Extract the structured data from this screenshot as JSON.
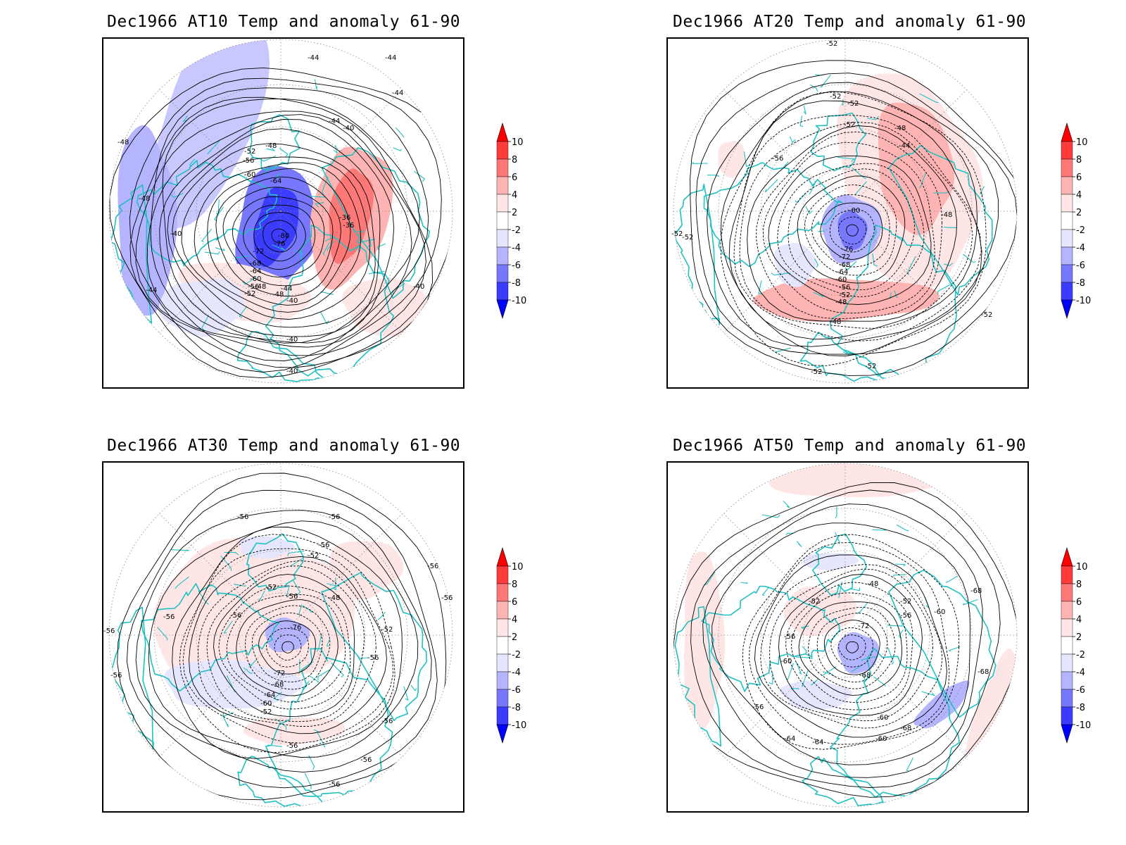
{
  "colorbar": {
    "ticks": [
      "10",
      "8",
      "6",
      "4",
      "2",
      "-2",
      "-4",
      "-6",
      "-8",
      "-10"
    ],
    "colors": [
      "#ff0000",
      "#ff3c3c",
      "#ff7878",
      "#ffb4b4",
      "#ffe6e6",
      "#ffffff",
      "#e6e6ff",
      "#b4b4ff",
      "#7878ff",
      "#3c3cff",
      "#0000ff"
    ]
  },
  "coastline_color": "#20c0c0",
  "panels": [
    {
      "title": "Dec1966 AT10 Temp and anomaly 61-90",
      "contour_labels": [
        "-44",
        "-44",
        "-44",
        "-44",
        "-44",
        "-48",
        "-48",
        "-48",
        "-48",
        "-52",
        "-56",
        "-60",
        "-64",
        "-40",
        "-40",
        "-40",
        "-40",
        "-40",
        "-36",
        "-36",
        "-80",
        "-76",
        "-72",
        "-68",
        "-64",
        "-60",
        "-56",
        "-52",
        "-48",
        "-44",
        "-40"
      ]
    },
    {
      "title": "Dec1966 AT20 Temp and anomaly 61-90",
      "contour_labels": [
        "-52",
        "-52",
        "-52",
        "-52",
        "-52",
        "-52",
        "-56",
        "-48",
        "-44",
        "-80",
        "-48",
        "-76",
        "-72",
        "-68",
        "-64",
        "-60",
        "-56",
        "-52",
        "-48",
        "-48",
        "-52",
        "-52",
        "-52"
      ]
    },
    {
      "title": "Dec1966 AT30 Temp and anomaly 61-90",
      "contour_labels": [
        "-56",
        "-56",
        "-56",
        "-52",
        "-56",
        "-56",
        "-52",
        "-56",
        "-48",
        "-56",
        "-56",
        "-56",
        "-76",
        "-52",
        "-72",
        "-68",
        "-64",
        "-60",
        "-52",
        "-56",
        "-56",
        "-56",
        "-56",
        "-56",
        "-56"
      ]
    },
    {
      "title": "Dec1966 AT50 Temp and anomaly 61-90",
      "contour_labels": [
        "-48",
        "-52",
        "-52",
        "-56",
        "-60",
        "-72",
        "-56",
        "-60",
        "-68",
        "-68",
        "-60",
        "-56",
        "-68",
        "-64",
        "-60",
        "-68",
        "-64"
      ]
    }
  ]
}
